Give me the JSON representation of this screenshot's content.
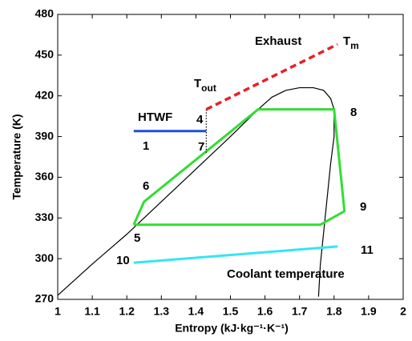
{
  "chart_data": {
    "type": "line",
    "x_label": "Entropy (kJ·kg⁻¹·K⁻¹)",
    "y_label": "Temperature (K)",
    "xlim": [
      1,
      2
    ],
    "xticks": [
      1,
      1.1,
      1.2,
      1.3,
      1.4,
      1.5,
      1.6,
      1.7,
      1.8,
      1.9,
      2
    ],
    "ylim": [
      270,
      480
    ],
    "yticks": [
      270,
      300,
      330,
      360,
      390,
      420,
      450,
      480
    ],
    "series": [
      {
        "color": "#000000",
        "style": "solid",
        "x": [
          1,
          1.1,
          1.2,
          1.3,
          1.4,
          1.5,
          1.58,
          1.62,
          1.66,
          1.7,
          1.74,
          1.77,
          1.79,
          1.8,
          1.8,
          1.79,
          1.78,
          1.77,
          1.76,
          1.755
        ],
        "values": [
          273,
          296,
          318,
          342,
          366,
          390,
          410,
          419,
          424,
          426,
          426,
          424,
          418,
          410,
          390,
          370,
          345,
          320,
          295,
          272
        ]
      },
      {
        "color": "#33dd33",
        "style": "solid",
        "x": [
          1.22,
          1.25,
          1.58,
          1.8,
          1.83,
          1.76,
          1.22
        ],
        "values": [
          325,
          342,
          410,
          410,
          335,
          325,
          325
        ]
      },
      {
        "color": "#1f4fdd",
        "style": "solid",
        "x": [
          1.22,
          1.43
        ],
        "values": [
          394,
          394
        ]
      },
      {
        "color": "#000000",
        "style": "dotted",
        "x": [
          1.43,
          1.43
        ],
        "values": [
          378,
          410
        ]
      },
      {
        "color": "#e8202a",
        "style": "dashed",
        "x": [
          1.43,
          1.81
        ],
        "values": [
          410,
          458
        ]
      },
      {
        "color": "#33e5f5",
        "style": "solid",
        "x": [
          1.22,
          1.81
        ],
        "values": [
          297,
          309
        ]
      }
    ],
    "annotations": [
      {
        "text": "Exhaust"
      },
      {
        "text": "T",
        "sub": "m"
      },
      {
        "text": "T",
        "sub": "out"
      },
      {
        "text": "HTWF"
      },
      {
        "text": "4"
      },
      {
        "text": "1"
      },
      {
        "text": "7"
      },
      {
        "text": "6"
      },
      {
        "text": "8"
      },
      {
        "text": "9"
      },
      {
        "text": "5"
      },
      {
        "text": "10"
      },
      {
        "text": "11"
      },
      {
        "text": "Coolant temperature"
      }
    ]
  }
}
